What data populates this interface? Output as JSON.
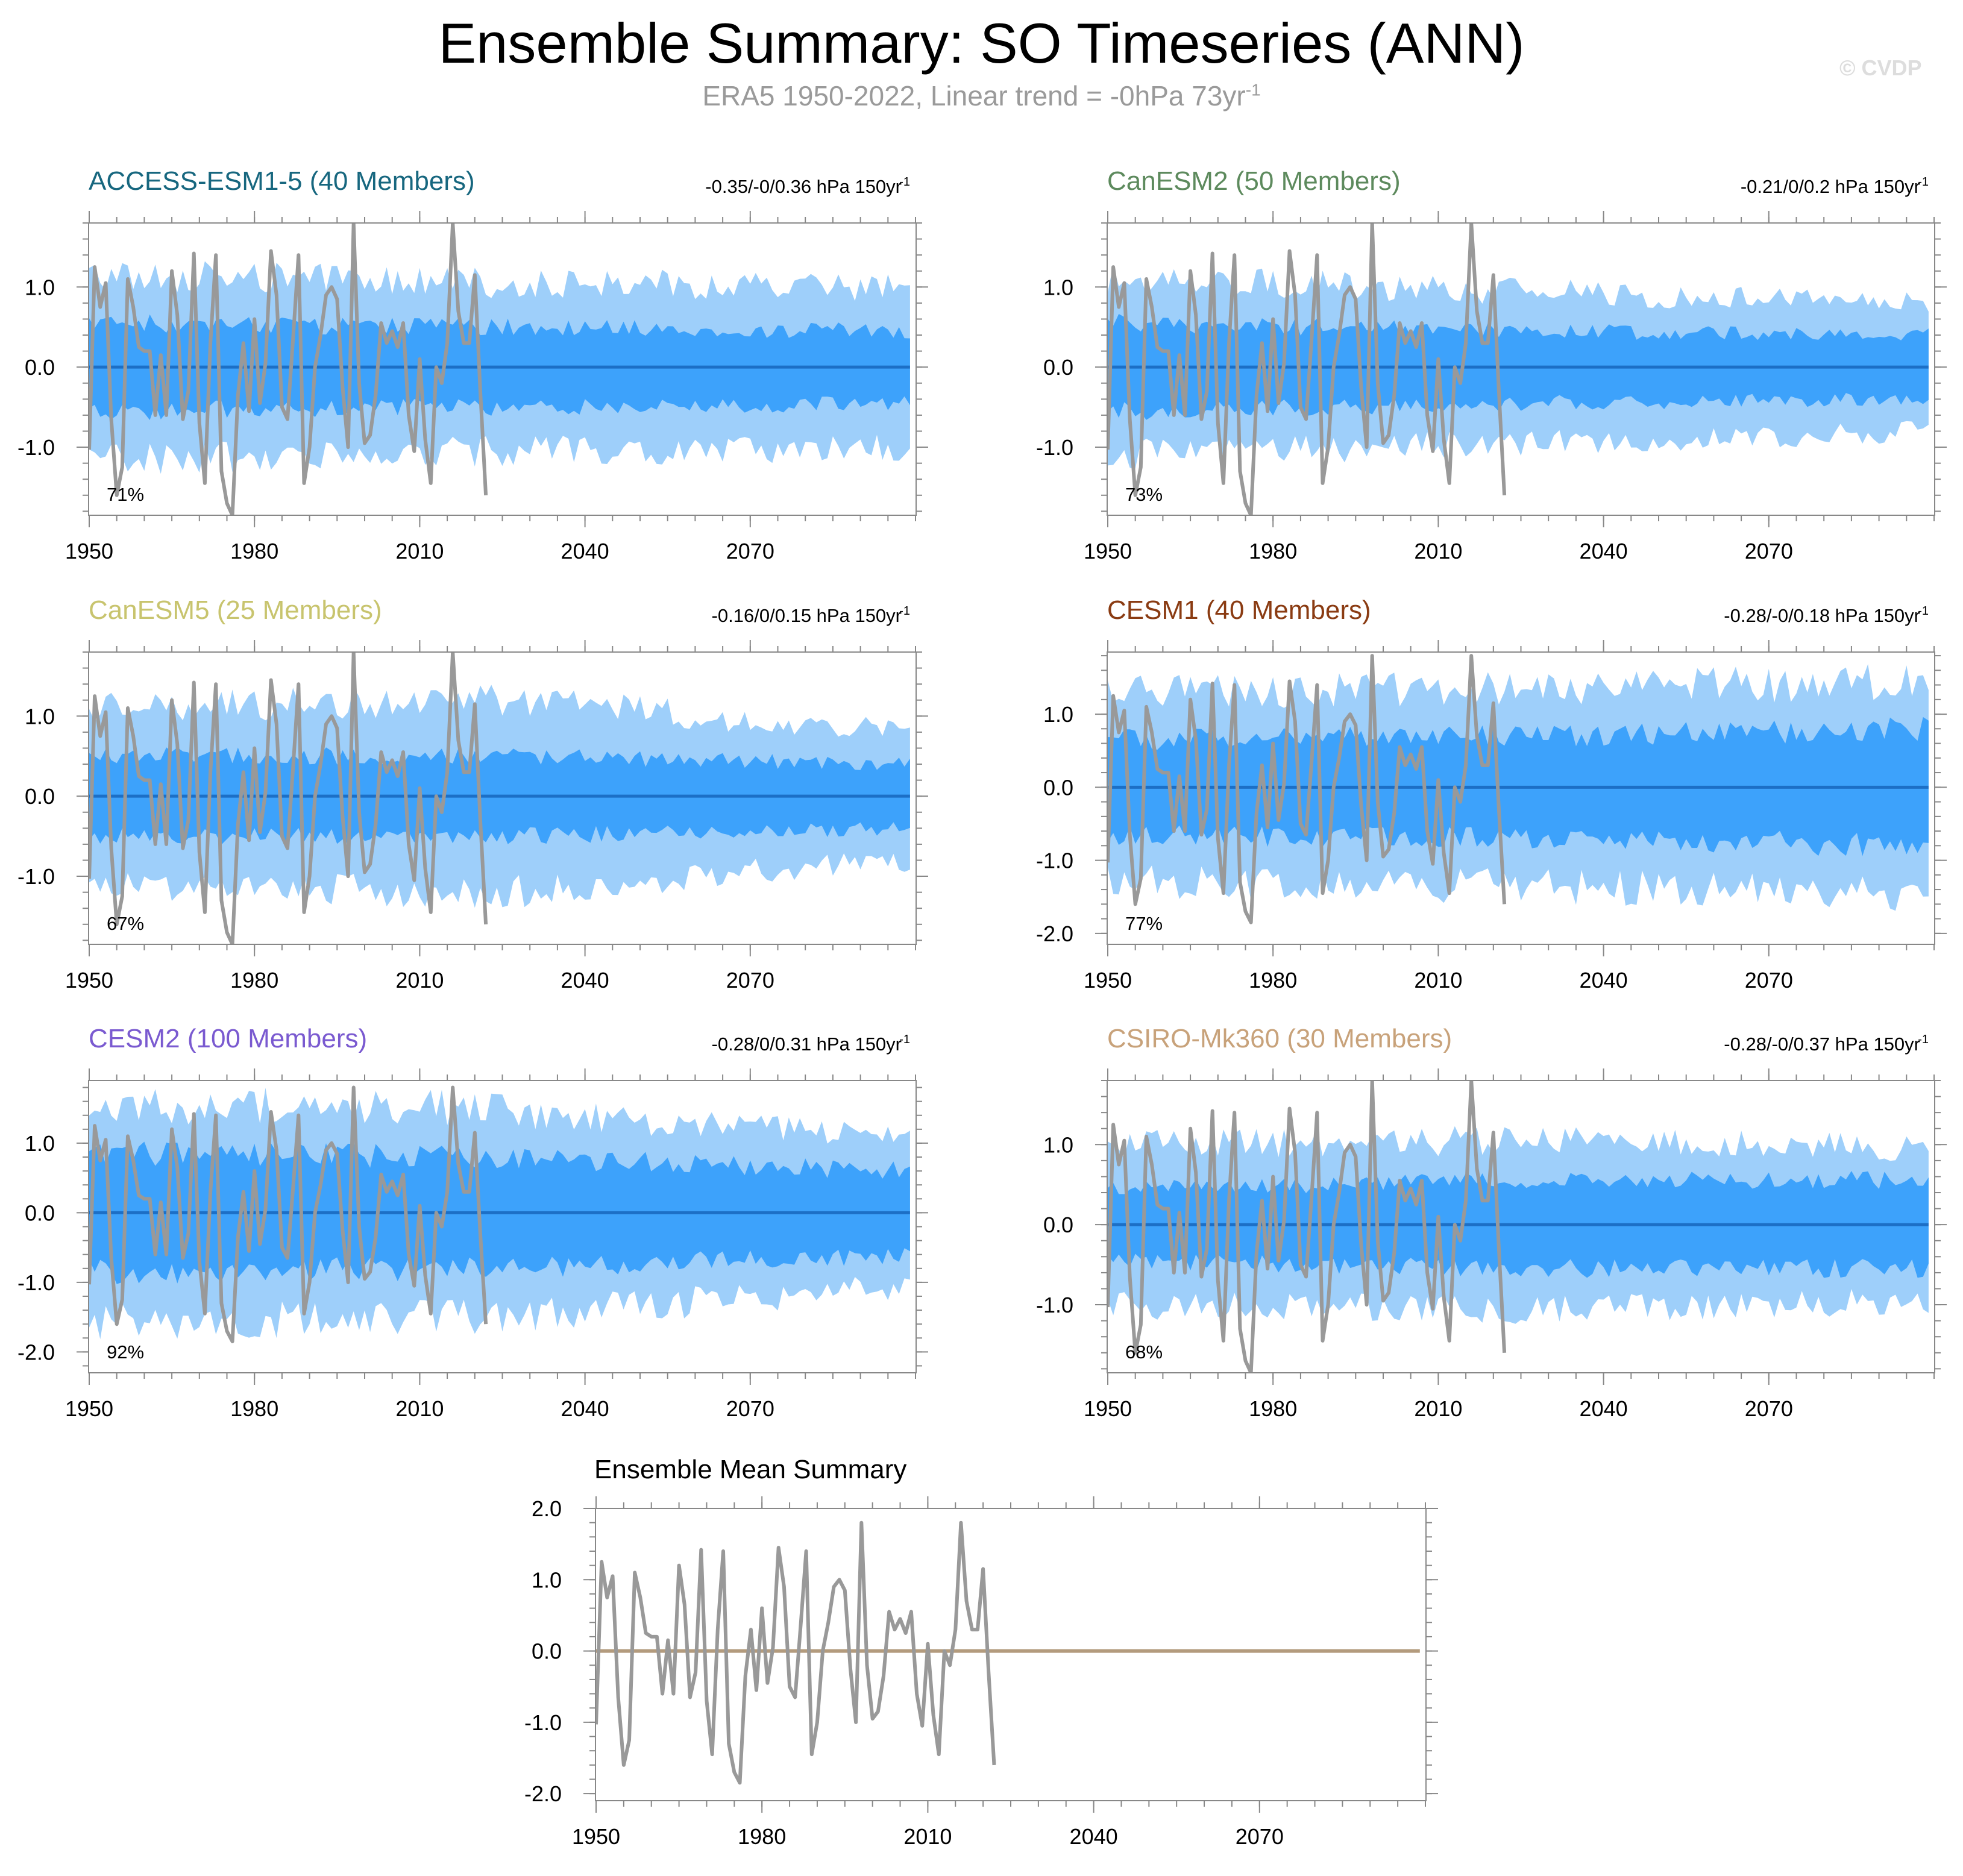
{
  "title": "Ensemble Summary: SO Timeseries (ANN)",
  "subtitle": "ERA5 1950-2022, Linear trend = -0hPa 73yr",
  "subtitle_sup": "-1",
  "watermark": "© CVDP",
  "colors": {
    "outer_band": "#9ecffa",
    "inner_band": "#3da2fb",
    "ensemble_mean": "#1c6fc6",
    "observed": "#999999",
    "mean_summary_line": "#b39b7d"
  },
  "chart_data": [
    {
      "type": "area",
      "title": "ACCESS-ESM1-5 (40 Members)",
      "title_color": "#17677f",
      "trend": "-0.35/-0/0.36 hPa 150yr",
      "trend_sup": "-1",
      "percent": "71%",
      "xlim": [
        1950,
        2100
      ],
      "ylim": [
        -1.85,
        1.8
      ],
      "yticks": [
        -1.0,
        0.0,
        1.0
      ],
      "ytick_labels": [
        "-1.0",
        "0.0",
        "1.0"
      ],
      "xticks": [
        1950,
        1980,
        2010,
        2040,
        2070
      ],
      "xtick_labels": [
        "1950",
        "1980",
        "2010",
        "2040",
        "2070"
      ],
      "inner": [
        0.55,
        0.5,
        0.45
      ],
      "outer": [
        1.15,
        1.05,
        1.0
      ]
    },
    {
      "type": "area",
      "title": "CanESM2 (50 Members)",
      "title_color": "#5d8a5d",
      "trend": "-0.21/0/0.2 hPa 150yr",
      "trend_sup": "-1",
      "percent": "73%",
      "xlim": [
        1950,
        2100
      ],
      "ylim": [
        -1.85,
        1.8
      ],
      "yticks": [
        -1.0,
        0.0,
        1.0
      ],
      "ytick_labels": [
        "-1.0",
        "0.0",
        "1.0"
      ],
      "xticks": [
        1950,
        1980,
        2010,
        2040,
        2070
      ],
      "xtick_labels": [
        "1950",
        "1980",
        "2010",
        "2040",
        "2070"
      ],
      "inner": [
        0.55,
        0.45,
        0.4
      ],
      "outer": [
        1.1,
        0.95,
        0.8
      ]
    },
    {
      "type": "area",
      "title": "CanESM5 (25 Members)",
      "title_color": "#c8c46e",
      "trend": "-0.16/0/0.15 hPa 150yr",
      "trend_sup": "-1",
      "percent": "67%",
      "xlim": [
        1950,
        2100
      ],
      "ylim": [
        -1.85,
        1.8
      ],
      "yticks": [
        -1.0,
        0.0,
        1.0
      ],
      "ytick_labels": [
        "-1.0",
        "0.0",
        "1.0"
      ],
      "xticks": [
        1950,
        1980,
        2010,
        2040,
        2070
      ],
      "xtick_labels": [
        "1950",
        "1980",
        "2010",
        "2040",
        "2070"
      ],
      "inner": [
        0.5,
        0.5,
        0.4
      ],
      "outer": [
        1.1,
        1.2,
        0.8
      ]
    },
    {
      "type": "area",
      "title": "CESM1 (40 Members)",
      "title_color": "#8a3b12",
      "trend": "-0.28/-0/0.18 hPa 150yr",
      "trend_sup": "-1",
      "percent": "77%",
      "xlim": [
        1950,
        2100
      ],
      "ylim": [
        -2.15,
        1.85
      ],
      "yticks": [
        -2.0,
        -1.0,
        0.0,
        1.0
      ],
      "ytick_labels": [
        "-2.0",
        "-1.0",
        "0.0",
        "1.0"
      ],
      "xticks": [
        1950,
        1980,
        2010,
        2040,
        2070
      ],
      "xtick_labels": [
        "1950",
        "1980",
        "2010",
        "2040",
        "2070"
      ],
      "inner": [
        0.65,
        0.7,
        0.8
      ],
      "outer": [
        1.3,
        1.35,
        1.45
      ]
    },
    {
      "type": "area",
      "title": "CESM2 (100 Members)",
      "title_color": "#7a5ad0",
      "trend": "-0.28/0/0.31 hPa 150yr",
      "trend_sup": "-1",
      "percent": "92%",
      "xlim": [
        1950,
        2100
      ],
      "ylim": [
        -2.3,
        1.9
      ],
      "yticks": [
        -2.0,
        -1.0,
        0.0,
        1.0
      ],
      "ytick_labels": [
        "-2.0",
        "-1.0",
        "0.0",
        "1.0"
      ],
      "xticks": [
        1950,
        1980,
        2010,
        2040,
        2070
      ],
      "xtick_labels": [
        "1950",
        "1980",
        "2010",
        "2040",
        "2070"
      ],
      "inner": [
        0.85,
        0.8,
        0.6
      ],
      "outer": [
        1.55,
        1.5,
        1.05
      ]
    },
    {
      "type": "area",
      "title": "CSIRO-Mk360 (30 Members)",
      "title_color": "#c8a27a",
      "trend": "-0.28/-0/0.37 hPa 150yr",
      "trend_sup": "-1",
      "percent": "68%",
      "xlim": [
        1950,
        2100
      ],
      "ylim": [
        -1.85,
        1.8
      ],
      "yticks": [
        -1.0,
        0.0,
        1.0
      ],
      "ytick_labels": [
        "-1.0",
        "0.0",
        "1.0"
      ],
      "xticks": [
        1950,
        1980,
        2010,
        2040,
        2070
      ],
      "xtick_labels": [
        "1950",
        "1980",
        "2010",
        "2040",
        "2070"
      ],
      "inner": [
        0.45,
        0.55,
        0.55
      ],
      "outer": [
        1.0,
        1.05,
        0.95
      ]
    },
    {
      "type": "line",
      "title": "Ensemble Mean Summary",
      "title_color": "#000000",
      "xlim": [
        1950,
        2100
      ],
      "ylim": [
        -2.1,
        2.0
      ],
      "yticks": [
        -2.0,
        -1.0,
        0.0,
        1.0,
        2.0
      ],
      "ytick_labels": [
        "-2.0",
        "-1.0",
        "0.0",
        "1.0",
        "2.0"
      ],
      "xticks": [
        1950,
        1980,
        2010,
        2040,
        2070
      ],
      "xtick_labels": [
        "1950",
        "1980",
        "2010",
        "2040",
        "2070"
      ],
      "series": [
        {
          "name": "Ensemble mean",
          "x": [
            1950,
            2099
          ],
          "values": [
            0.0,
            0.0
          ]
        }
      ]
    }
  ],
  "observed": {
    "name": "ERA5",
    "x": [
      1950,
      1951,
      1952,
      1953,
      1954,
      1955,
      1956,
      1957,
      1958,
      1959,
      1960,
      1961,
      1962,
      1963,
      1964,
      1965,
      1966,
      1967,
      1968,
      1969,
      1970,
      1971,
      1972,
      1973,
      1974,
      1975,
      1976,
      1977,
      1978,
      1979,
      1980,
      1981,
      1982,
      1983,
      1984,
      1985,
      1986,
      1987,
      1988,
      1989,
      1990,
      1991,
      1992,
      1993,
      1994,
      1995,
      1996,
      1997,
      1998,
      1999,
      2000,
      2001,
      2002,
      2003,
      2004,
      2005,
      2006,
      2007,
      2008,
      2009,
      2010,
      2011,
      2012,
      2013,
      2014,
      2015,
      2016,
      2017,
      2018,
      2019,
      2020,
      2021,
      2022
    ],
    "values": [
      -1.03,
      1.25,
      0.75,
      1.05,
      -0.65,
      -1.6,
      -1.25,
      1.1,
      0.75,
      0.25,
      0.2,
      0.2,
      -0.6,
      0.15,
      -0.6,
      1.2,
      0.65,
      -0.65,
      -0.3,
      1.42,
      -0.7,
      -1.45,
      0.3,
      1.4,
      -1.3,
      -1.7,
      -1.85,
      -0.35,
      0.3,
      -0.55,
      0.6,
      -0.45,
      0.05,
      1.45,
      0.9,
      -0.5,
      -0.65,
      0.35,
      1.4,
      -1.45,
      -1.0,
      0.0,
      0.4,
      0.9,
      1.0,
      0.85,
      -0.25,
      -1.0,
      1.8,
      -0.2,
      -0.95,
      -0.85,
      -0.35,
      0.55,
      0.3,
      0.45,
      0.25,
      0.55,
      -0.6,
      -1.05,
      0.1,
      -0.9,
      -1.45,
      0.0,
      -0.2,
      0.3,
      1.8,
      0.7,
      0.3,
      0.3,
      1.15,
      -0.3,
      -1.6
    ]
  }
}
